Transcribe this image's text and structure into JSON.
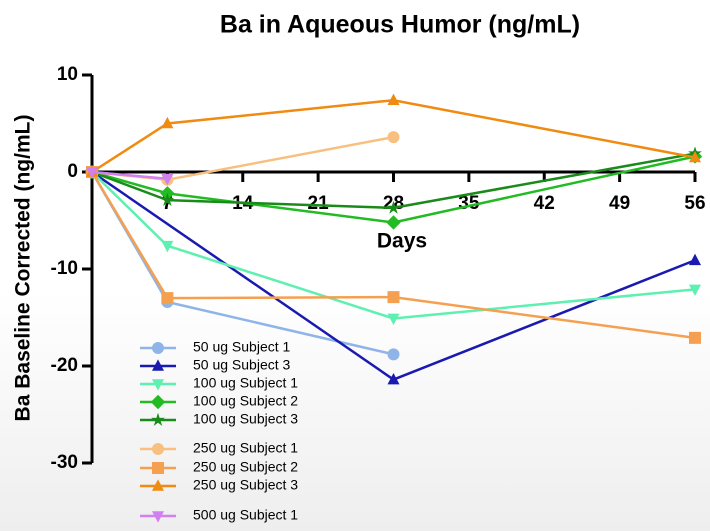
{
  "chart_data": {
    "type": "line",
    "title": "Ba in Aqueous Humor (ng/mL)",
    "x_label": "Days",
    "y_label": "Ba Baseline Corrected (ng/mL)",
    "xlim": [
      0,
      56
    ],
    "xticks": [
      7,
      14,
      21,
      28,
      35,
      42,
      49,
      56
    ],
    "ylim": [
      -30,
      10
    ],
    "yticks": [
      10,
      0,
      -10,
      -20,
      -30
    ],
    "legend": "lower left",
    "series": [
      {
        "name": "50 ug Subject 1",
        "color": "#8fb4e8",
        "marker": "circle",
        "x": [
          0,
          7,
          28
        ],
        "values": [
          0,
          -13.4,
          -18.8
        ]
      },
      {
        "name": "50 ug Subject 3",
        "color": "#1a1ab0",
        "marker": "triangle",
        "x": [
          0,
          28,
          56
        ],
        "values": [
          0,
          -21.4,
          -9.1
        ]
      },
      {
        "name": "100 ug Subject 1",
        "color": "#5ef0b0",
        "marker": "triangle-down",
        "x": [
          0,
          7,
          28,
          56
        ],
        "values": [
          0,
          -7.6,
          -15.1,
          -12.1
        ]
      },
      {
        "name": "100 ug Subject 2",
        "color": "#22bb22",
        "marker": "diamond",
        "x": [
          0,
          7,
          28,
          56
        ],
        "values": [
          0,
          -2.2,
          -5.2,
          1.6
        ]
      },
      {
        "name": "100 ug Subject 3",
        "color": "#1a8a1a",
        "marker": "star",
        "x": [
          0,
          7,
          28,
          56
        ],
        "values": [
          0,
          -2.9,
          -3.7,
          1.9
        ]
      },
      {
        "name": "250 ug Subject 1",
        "color": "#f8c080",
        "marker": "circle",
        "x": [
          0,
          7,
          28
        ],
        "values": [
          0,
          -0.8,
          3.6
        ]
      },
      {
        "name": "250 ug Subject 2",
        "color": "#f5a050",
        "marker": "square",
        "x": [
          0,
          7,
          28,
          56
        ],
        "values": [
          0,
          -13,
          -12.9,
          -17.1
        ]
      },
      {
        "name": "250 ug Subject 3",
        "color": "#f08a10",
        "marker": "triangle",
        "x": [
          0,
          7,
          28,
          56
        ],
        "values": [
          0,
          5,
          7.4,
          1.5
        ]
      },
      {
        "name": "500 ug Subject 1",
        "color": "#d080f0",
        "marker": "triangle-down",
        "x": [
          0,
          7
        ],
        "values": [
          0,
          -0.7
        ]
      }
    ]
  }
}
